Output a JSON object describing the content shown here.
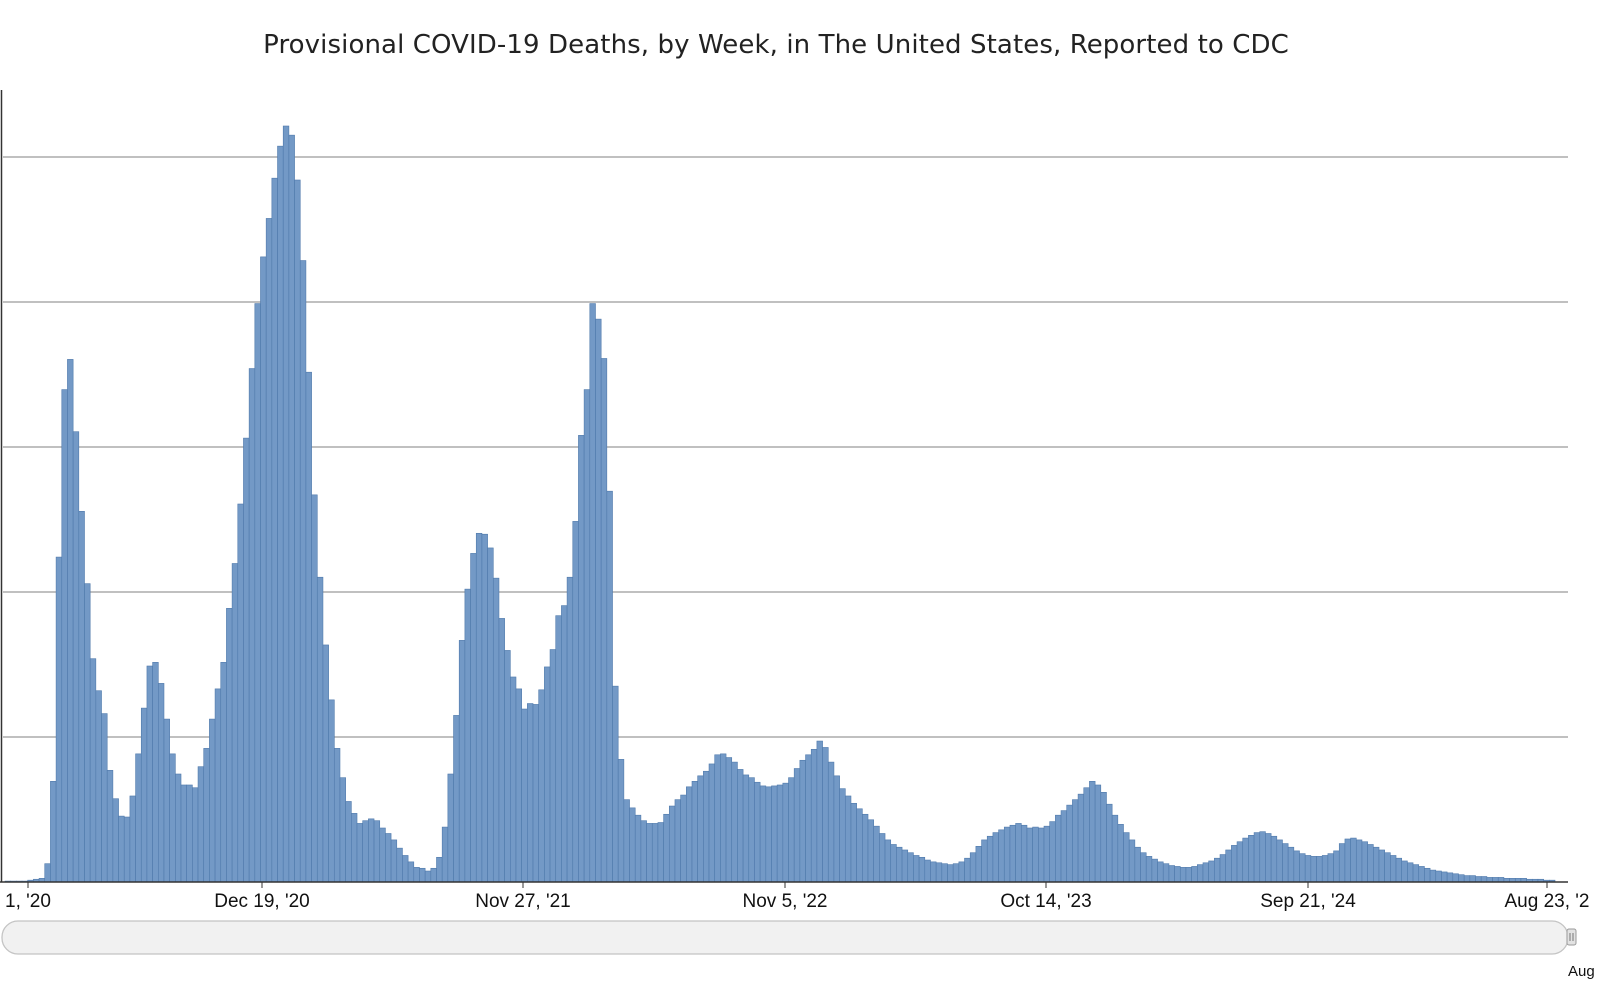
{
  "chart_data": {
    "type": "bar",
    "title": "Provisional COVID-19 Deaths, by Week, in The United States, Reported to CDC",
    "xlabel": "",
    "ylabel": "",
    "x_tick_labels": [
      "1, '20",
      "Dec 19, '20",
      "Nov 27, '21",
      "Nov 5, '22",
      "Oct 14, '23",
      "Sep 21, '24",
      "Aug 23, '2"
    ],
    "navigator_end_label": "Aug",
    "grid": true,
    "legend": "none",
    "bar_color": "#7399c6",
    "bar_edge_color": "#4f79ab",
    "gridline_count": 5,
    "values": [
      0.1,
      0.1,
      0.1,
      0.1,
      0.2,
      0.3,
      0.4,
      2.0,
      11.0,
      35.5,
      53.8,
      57.1,
      49.2,
      40.5,
      32.6,
      24.4,
      20.9,
      18.4,
      12.2,
      9.1,
      7.2,
      7.1,
      9.4,
      14.0,
      19.0,
      23.6,
      24.0,
      21.7,
      17.8,
      14.0,
      11.8,
      10.6,
      10.6,
      10.3,
      12.6,
      14.6,
      17.8,
      21.1,
      24.0,
      29.9,
      34.8,
      41.3,
      48.5,
      56.1,
      63.2,
      68.3,
      72.5,
      76.9,
      80.4,
      82.6,
      81.6,
      76.7,
      67.9,
      55.7,
      42.3,
      33.3,
      25.9,
      19.9,
      14.6,
      11.4,
      8.8,
      7.5,
      6.4,
      6.7,
      6.9,
      6.7,
      5.9,
      5.3,
      4.6,
      3.7,
      2.9,
      2.2,
      1.6,
      1.5,
      1.2,
      1.5,
      2.7,
      6.0,
      11.8,
      18.2,
      26.4,
      32.0,
      35.9,
      38.1,
      38.0,
      36.5,
      33.2,
      28.8,
      25.3,
      22.4,
      21.1,
      18.9,
      19.5,
      19.4,
      21.0,
      23.5,
      25.4,
      29.1,
      30.2,
      33.3,
      39.4,
      48.8,
      53.8,
      63.2,
      61.5,
      57.2,
      42.7,
      21.4,
      13.4,
      9.0,
      8.1,
      7.3,
      6.7,
      6.4,
      6.4,
      6.5,
      7.4,
      8.3,
      9.0,
      9.5,
      10.4,
      11.0,
      11.6,
      12.1,
      12.9,
      13.9,
      14.0,
      13.6,
      13.1,
      12.3,
      11.7,
      11.4,
      10.9,
      10.5,
      10.4,
      10.5,
      10.6,
      10.8,
      11.4,
      12.4,
      13.3,
      13.9,
      14.5,
      15.4,
      14.7,
      13.1,
      11.6,
      10.2,
      9.4,
      8.6,
      8.0,
      7.4,
      6.8,
      6.1,
      5.3,
      4.6,
      4.1,
      3.8,
      3.5,
      3.2,
      2.9,
      2.7,
      2.4,
      2.2,
      2.1,
      2.0,
      1.9,
      2.0,
      2.2,
      2.6,
      3.2,
      3.9,
      4.6,
      5.0,
      5.4,
      5.7,
      6.0,
      6.2,
      6.4,
      6.2,
      5.9,
      6.0,
      5.9,
      6.1,
      6.6,
      7.3,
      7.8,
      8.4,
      9.0,
      9.6,
      10.3,
      11.0,
      10.6,
      9.8,
      8.5,
      7.3,
      6.3,
      5.4,
      4.6,
      3.8,
      3.2,
      2.8,
      2.5,
      2.2,
      2.0,
      1.8,
      1.7,
      1.6,
      1.6,
      1.7,
      1.9,
      2.1,
      2.3,
      2.6,
      3.0,
      3.5,
      4.0,
      4.4,
      4.8,
      5.1,
      5.4,
      5.5,
      5.3,
      5.0,
      4.6,
      4.2,
      3.8,
      3.4,
      3.1,
      2.9,
      2.8,
      2.8,
      2.9,
      3.1,
      3.4,
      4.2,
      4.7,
      4.8,
      4.6,
      4.4,
      4.1,
      3.8,
      3.5,
      3.2,
      2.9,
      2.6,
      2.3,
      2.1,
      1.9,
      1.7,
      1.5,
      1.3,
      1.2,
      1.1,
      1.0,
      0.9,
      0.8,
      0.7,
      0.7,
      0.6,
      0.6,
      0.5,
      0.5,
      0.5,
      0.4,
      0.4,
      0.4,
      0.4,
      0.3,
      0.3,
      0.3,
      0.2,
      0.2
    ]
  }
}
